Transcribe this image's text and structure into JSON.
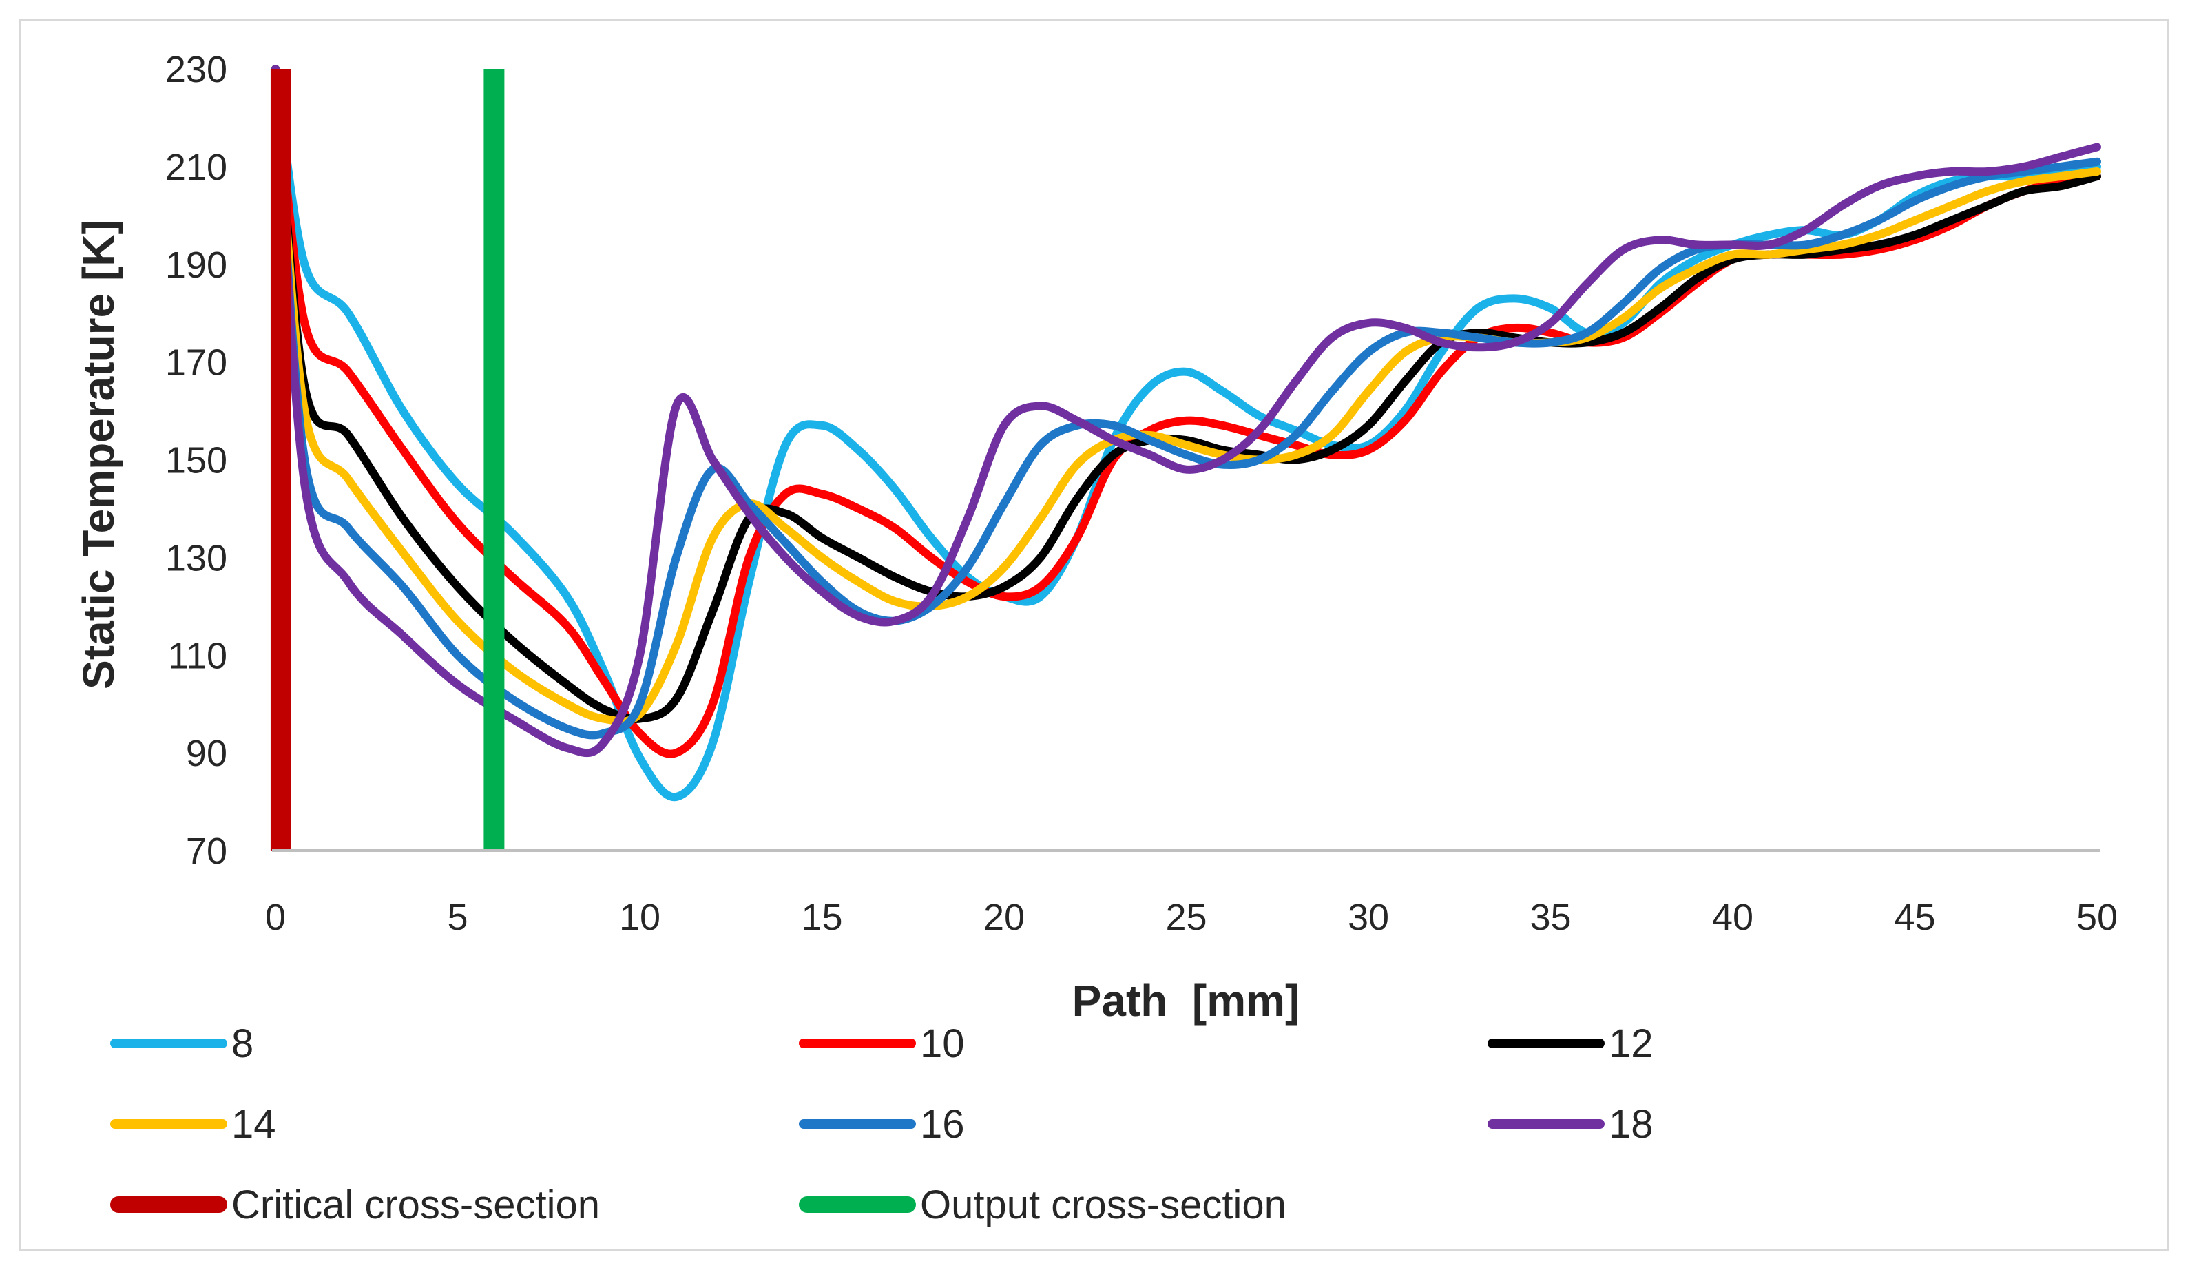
{
  "chart_data": {
    "type": "line",
    "title": "",
    "xlabel": "Path  [mm]",
    "ylabel": "Static Temperature [K]",
    "xlim": [
      0,
      50
    ],
    "ylim": [
      70,
      230
    ],
    "xticks": [
      "0",
      "5",
      "10",
      "15",
      "20",
      "25",
      "30",
      "35",
      "40",
      "45",
      "50"
    ],
    "yticks": [
      "70",
      "90",
      "110",
      "130",
      "150",
      "170",
      "190",
      "210",
      "230"
    ],
    "grid": false,
    "legend_position": "bottom",
    "series": [
      {
        "name": "8",
        "color": "#1AB2E8",
        "x": [
          0,
          0.8,
          2,
          3.5,
          5,
          6.5,
          8,
          9,
          10,
          11,
          12,
          13,
          14,
          15,
          16,
          17,
          18,
          19,
          20,
          21,
          22,
          23,
          24,
          25,
          26,
          27,
          28,
          29,
          30,
          31,
          32,
          33,
          34,
          35,
          36,
          37,
          38,
          39,
          40,
          41,
          42,
          43,
          44,
          45,
          46,
          47,
          48,
          49,
          50
        ],
        "y": [
          230,
          190,
          180,
          160,
          145,
          135,
          122,
          107,
          89,
          81,
          92,
          125,
          153,
          157,
          152,
          144,
          134,
          126,
          122,
          122,
          134,
          154,
          165,
          168,
          164,
          159,
          156,
          153,
          153,
          160,
          172,
          181,
          183,
          181,
          176,
          178,
          186,
          191,
          194,
          196,
          197,
          196,
          199,
          204,
          207,
          208,
          208,
          209,
          210
        ]
      },
      {
        "name": "10",
        "color": "#FF0000",
        "x": [
          0,
          0.8,
          2,
          3.5,
          5,
          6.5,
          8,
          9,
          10,
          11,
          12,
          13,
          14,
          15,
          16,
          17,
          18,
          19,
          20,
          21,
          22,
          23,
          24,
          25,
          26,
          27,
          28,
          29,
          30,
          31,
          32,
          33,
          34,
          35,
          36,
          37,
          38,
          39,
          40,
          41,
          42,
          43,
          44,
          45,
          46,
          47,
          48,
          49,
          50
        ],
        "y": [
          230,
          178,
          168,
          152,
          137,
          126,
          116,
          105,
          94,
          90,
          100,
          130,
          143,
          143,
          140,
          136,
          130,
          125,
          122,
          124,
          134,
          150,
          156,
          158,
          157,
          155,
          153,
          151,
          152,
          158,
          168,
          175,
          177,
          176,
          174,
          175,
          180,
          186,
          191,
          192,
          192,
          192,
          193,
          195,
          198,
          202,
          205,
          207,
          208
        ]
      },
      {
        "name": "12",
        "color": "#000000",
        "x": [
          0,
          0.8,
          2,
          3.5,
          5,
          6.5,
          8,
          9,
          10,
          11,
          12,
          13,
          14,
          15,
          16,
          17,
          18,
          19,
          20,
          21,
          22,
          23,
          24,
          25,
          26,
          27,
          28,
          29,
          30,
          31,
          32,
          33,
          34,
          35,
          36,
          37,
          38,
          39,
          40,
          41,
          42,
          43,
          44,
          45,
          46,
          47,
          48,
          49,
          50
        ],
        "y": [
          230,
          165,
          155,
          138,
          124,
          113,
          104,
          99,
          97,
          101,
          119,
          138,
          139,
          134,
          130,
          126,
          123,
          122,
          124,
          130,
          142,
          151,
          154,
          154,
          152,
          151,
          150,
          152,
          157,
          166,
          174,
          176,
          175,
          174,
          174,
          176,
          181,
          187,
          191,
          192,
          192,
          193,
          194,
          196,
          199,
          202,
          205,
          206,
          208
        ]
      },
      {
        "name": "14",
        "color": "#FFC000",
        "x": [
          0,
          0.8,
          2,
          3.5,
          5,
          6.5,
          8,
          9,
          10,
          11,
          12,
          13,
          14,
          15,
          16,
          17,
          18,
          19,
          20,
          21,
          22,
          23,
          24,
          25,
          26,
          27,
          28,
          29,
          30,
          31,
          32,
          33,
          34,
          35,
          36,
          37,
          38,
          39,
          40,
          41,
          42,
          43,
          44,
          45,
          46,
          47,
          48,
          49,
          50
        ],
        "y": [
          230,
          160,
          146,
          131,
          117,
          107,
          100,
          97,
          98,
          112,
          134,
          141,
          136,
          130,
          125,
          121,
          120,
          122,
          128,
          138,
          149,
          154,
          155,
          153,
          151,
          150,
          151,
          155,
          164,
          172,
          175,
          175,
          174,
          174,
          175,
          179,
          185,
          189,
          192,
          192,
          193,
          194,
          196,
          199,
          202,
          205,
          207,
          208,
          209
        ]
      },
      {
        "name": "16",
        "color": "#1F77C8",
        "x": [
          0,
          0.8,
          2,
          3.5,
          5,
          6.5,
          8,
          9,
          10,
          11,
          12,
          13,
          14,
          15,
          16,
          17,
          18,
          19,
          20,
          21,
          22,
          23,
          24,
          25,
          26,
          27,
          28,
          29,
          30,
          31,
          32,
          33,
          34,
          35,
          36,
          37,
          38,
          39,
          40,
          41,
          42,
          43,
          44,
          45,
          46,
          47,
          48,
          49,
          50
        ],
        "y": [
          230,
          150,
          136,
          124,
          110,
          101,
          95,
          94,
          100,
          130,
          148,
          141,
          133,
          125,
          119,
          117,
          120,
          128,
          141,
          153,
          157,
          157,
          154,
          151,
          149,
          150,
          155,
          164,
          172,
          176,
          176,
          175,
          174,
          174,
          176,
          182,
          189,
          193,
          194,
          194,
          194,
          196,
          199,
          203,
          206,
          208,
          209,
          210,
          211
        ]
      },
      {
        "name": "18",
        "color": "#7030A0",
        "x": [
          0,
          0.8,
          2,
          3.5,
          5,
          6.5,
          8,
          9,
          10,
          11,
          12,
          13,
          14,
          15,
          16,
          17,
          18,
          19,
          20,
          21,
          22,
          23,
          24,
          25,
          26,
          27,
          28,
          29,
          30,
          31,
          32,
          33,
          34,
          35,
          36,
          37,
          38,
          39,
          40,
          41,
          42,
          43,
          44,
          45,
          46,
          47,
          48,
          49,
          50
        ],
        "y": [
          230,
          145,
          125,
          114,
          104,
          97,
          91,
          92,
          110,
          161,
          150,
          139,
          130,
          123,
          118,
          117,
          122,
          138,
          157,
          161,
          158,
          154,
          151,
          148,
          150,
          156,
          166,
          175,
          178,
          177,
          174,
          173,
          174,
          178,
          186,
          193,
          195,
          194,
          194,
          194,
          197,
          202,
          206,
          208,
          209,
          209,
          210,
          212,
          214
        ]
      }
    ],
    "vlines": [
      {
        "name": "Critical cross-section",
        "x": 0.15,
        "color": "#C00000"
      },
      {
        "name": "Output cross-section",
        "x": 6.0,
        "color": "#00B050"
      }
    ]
  }
}
